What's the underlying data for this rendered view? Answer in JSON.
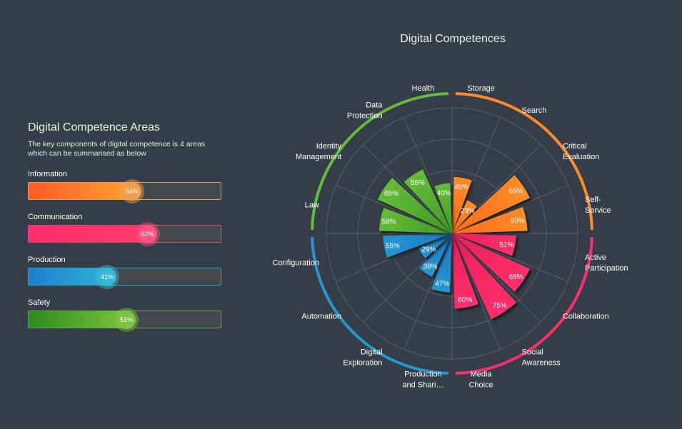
{
  "areas_panel": {
    "title": "Digital Competence Areas",
    "description": "The key components of digital competence is 4 areas which can be summarised as below",
    "areas": [
      {
        "label": "Information",
        "percent": 54,
        "value_label": "54%",
        "color_from": "#ff5a28",
        "color_to": "#ffa030",
        "border": "#d9a45a",
        "knob": "#f0a04c"
      },
      {
        "label": "Communication",
        "percent": 62,
        "value_label": "62%",
        "color_from": "#ff2d6e",
        "color_to": "#ff3a6a",
        "border": "#e0457a",
        "knob": "#ff5584"
      },
      {
        "label": "Production",
        "percent": 41,
        "value_label": "41%",
        "color_from": "#1f7fd0",
        "color_to": "#2eb0d5",
        "border": "#2fa4c2",
        "knob": "#35b8d4"
      },
      {
        "label": "Safety",
        "percent": 51,
        "value_label": "51%",
        "color_from": "#2f8a22",
        "color_to": "#78c43a",
        "border": "#5da83a",
        "knob": "#7cc444"
      }
    ]
  },
  "chart_data": {
    "type": "polar-bar",
    "title": "Digital Competences",
    "rmax": 100,
    "groups": [
      {
        "name": "Information",
        "color": "#ff8c2a",
        "color_dark": "#ff6a1a"
      },
      {
        "name": "Communication",
        "color": "#ff2f6c",
        "color_dark": "#e8205a"
      },
      {
        "name": "Production",
        "color": "#2696d0",
        "color_dark": "#1f78c0"
      },
      {
        "name": "Safety",
        "color": "#66bb3a",
        "color_dark": "#3f9a22"
      }
    ],
    "categories": [
      {
        "label": "Storage",
        "lines": [
          "Storage"
        ],
        "value": 45,
        "value_label": "45%",
        "group": 0
      },
      {
        "label": "Search",
        "lines": [
          "Search"
        ],
        "value": 29,
        "value_label": "29%",
        "group": 0
      },
      {
        "label": "Critical Evaluation",
        "lines": [
          "Critical",
          "Evaluation"
        ],
        "value": 68,
        "value_label": "68%",
        "group": 0
      },
      {
        "label": "Self-Service",
        "lines": [
          "Self-",
          "Service"
        ],
        "value": 60,
        "value_label": "60%",
        "group": 0
      },
      {
        "label": "Active Participation",
        "lines": [
          "Active",
          "Participation"
        ],
        "value": 51,
        "value_label": "51%",
        "group": 1
      },
      {
        "label": "Collaboration",
        "lines": [
          "Collaboration"
        ],
        "value": 68,
        "value_label": "68%",
        "group": 1
      },
      {
        "label": "Social Awareness",
        "lines": [
          "Social",
          "Awareness"
        ],
        "value": 75,
        "value_label": "75%",
        "group": 1
      },
      {
        "label": "Media Choice",
        "lines": [
          "Media",
          "Choice"
        ],
        "value": 60,
        "value_label": "60%",
        "group": 1
      },
      {
        "label": "Production and Shari...",
        "lines": [
          "Production",
          "and Shari…"
        ],
        "value": 47,
        "value_label": "47%",
        "group": 2
      },
      {
        "label": "Digital Exploration",
        "lines": [
          "Digital",
          "Exploration"
        ],
        "value": 38,
        "value_label": "38%",
        "group": 2
      },
      {
        "label": "Automation",
        "lines": [
          "Automation"
        ],
        "value": 29,
        "value_label": "29%",
        "group": 2
      },
      {
        "label": "Configuration",
        "lines": [
          "Configuration"
        ],
        "value": 55,
        "value_label": "55%",
        "group": 2
      },
      {
        "label": "Law",
        "lines": [
          "Law"
        ],
        "value": 58,
        "value_label": "58%",
        "group": 3
      },
      {
        "label": "Identity Management",
        "lines": [
          "Identity",
          "Management"
        ],
        "value": 65,
        "value_label": "65%",
        "group": 3
      },
      {
        "label": "Data Protection",
        "lines": [
          "Data",
          "Protection"
        ],
        "value": 56,
        "value_label": "56%",
        "group": 3
      },
      {
        "label": "Health",
        "lines": [
          "Health"
        ],
        "value": 40,
        "value_label": "40%",
        "group": 3
      }
    ],
    "grid": true
  }
}
